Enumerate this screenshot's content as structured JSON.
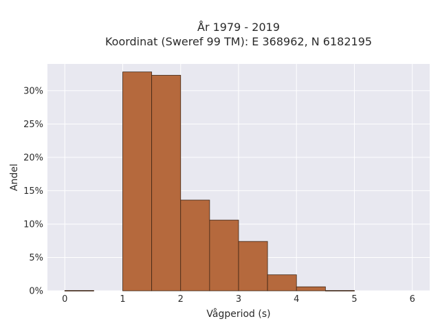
{
  "chart_data": {
    "type": "bar",
    "title": [
      "År 1979 - 2019",
      "Koordinat (Sweref 99 TM): E 368962, N 6182195"
    ],
    "xlabel": "Vågperiod (s)",
    "ylabel": "Andel",
    "xlim": [
      -0.3,
      6.3
    ],
    "ylim": [
      0,
      34
    ],
    "x_ticks": [
      0,
      1,
      2,
      3,
      4,
      5,
      6
    ],
    "x_tick_labels": [
      "0",
      "1",
      "2",
      "3",
      "4",
      "5",
      "6"
    ],
    "y_ticks": [
      0,
      5,
      10,
      15,
      20,
      25,
      30
    ],
    "y_tick_labels": [
      "0%",
      "5%",
      "10%",
      "15%",
      "20%",
      "25%",
      "30%"
    ],
    "bin_edges": [
      0,
      0.5,
      1.0,
      1.5,
      2.0,
      2.5,
      3.0,
      3.5,
      4.0,
      4.5,
      5.0,
      5.5,
      6.0
    ],
    "values": [
      0.05,
      0,
      32.8,
      32.3,
      13.6,
      10.6,
      7.4,
      2.4,
      0.6,
      0.05,
      0,
      0
    ],
    "grid": true,
    "colors": {
      "bar_fill": "#b5693d",
      "bar_edge": "#3d2414",
      "plot_bg": "#e8e8f0",
      "grid": "#ffffff"
    }
  }
}
